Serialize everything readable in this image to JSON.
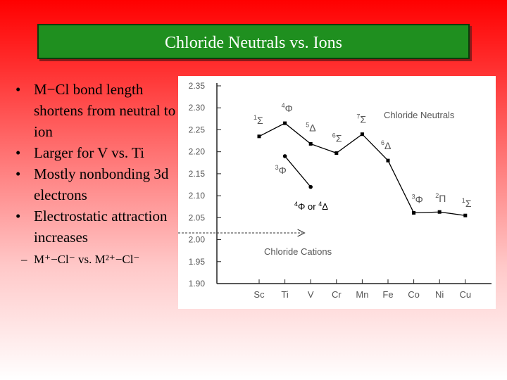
{
  "slide": {
    "title": "Chloride Neutrals vs. Ions",
    "bullets": [
      "M−Cl bond length shortens from neutral to ion",
      "Larger for V vs. Ti",
      "Mostly nonbonding 3d electrons",
      "Electrostatic attraction increases"
    ],
    "sub_bullet": "M⁺−Cl⁻ vs. M²⁺−Cl⁻",
    "bullet_symbol": "•",
    "sub_symbol": "–"
  },
  "chart_data": {
    "type": "line",
    "categories": [
      "Sc",
      "Ti",
      "V",
      "Cr",
      "Mn",
      "Fe",
      "Co",
      "Ni",
      "Cu"
    ],
    "ylim": [
      1.9,
      2.35
    ],
    "yticks": [
      "2.35",
      "2.30",
      "2.25",
      "2.20",
      "2.15",
      "2.10",
      "2.05",
      "2.00",
      "1.95",
      "1.90"
    ],
    "series": [
      {
        "name": "Chloride Neutrals",
        "values": [
          2.235,
          2.265,
          2.218,
          2.197,
          2.24,
          2.18,
          2.061,
          2.063,
          2.055
        ]
      },
      {
        "name": "Chloride Cations",
        "values": [
          null,
          2.19,
          2.12,
          null,
          null,
          null,
          null,
          null,
          null
        ]
      }
    ],
    "point_labels": [
      {
        "sup": "1",
        "sym": "Σ"
      },
      {
        "sup": "4",
        "sym": "Φ"
      },
      {
        "sup": "5",
        "sym": "Δ"
      },
      {
        "sup": "6",
        "sym": "Σ"
      },
      {
        "sup": "7",
        "sym": "Σ"
      },
      {
        "sup": "6",
        "sym": "Δ"
      },
      {
        "sup": "3",
        "sym": "Φ"
      },
      {
        "sup": "2",
        "sym": "Π"
      },
      {
        "sup": "1",
        "sym": "Σ"
      }
    ],
    "cation_label": {
      "sup": "3",
      "sym": "Φ"
    },
    "annotation": {
      "sup1": "4",
      "sym1": "Φ",
      "mid": " or ",
      "sup2": "4",
      "sym2": "Δ"
    },
    "colors": {
      "line": "#000000",
      "marker": "#000000",
      "text": "#555555",
      "axis": "#222222"
    }
  }
}
